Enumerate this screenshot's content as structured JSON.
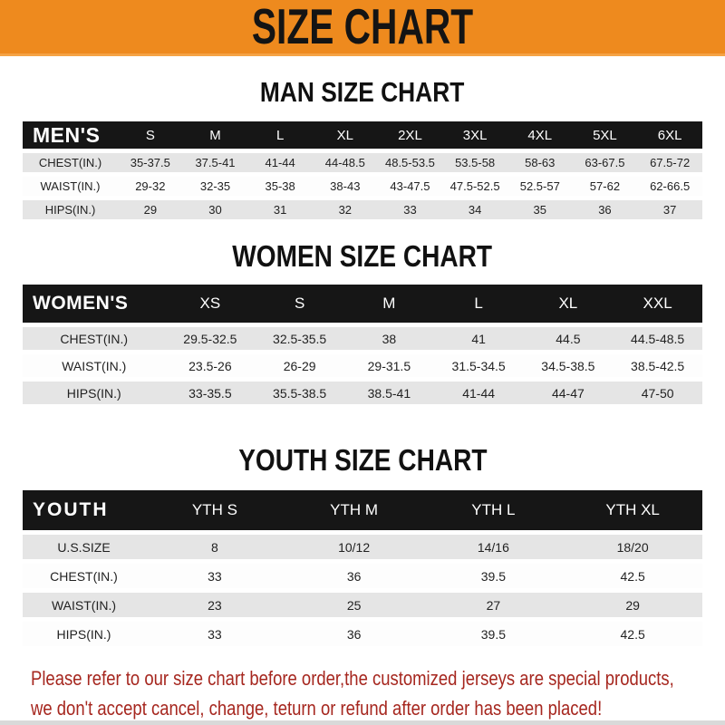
{
  "banner": {
    "title": "SIZE CHART",
    "bg_color": "#ee8a1e",
    "text_color": "#141414"
  },
  "sections": [
    {
      "heading": "MAN SIZE CHART",
      "band_label": "MEN'S",
      "columns": [
        "S",
        "M",
        "L",
        "XL",
        "2XL",
        "3XL",
        "4XL",
        "5XL",
        "6XL"
      ],
      "rows": [
        {
          "label": "CHEST(IN.)",
          "values": [
            "35-37.5",
            "37.5-41",
            "41-44",
            "44-48.5",
            "48.5-53.5",
            "53.5-58",
            "58-63",
            "63-67.5",
            "67.5-72"
          ]
        },
        {
          "label": "WAIST(IN.)",
          "values": [
            "29-32",
            "32-35",
            "35-38",
            "38-43",
            "43-47.5",
            "47.5-52.5",
            "52.5-57",
            "57-62",
            "62-66.5"
          ]
        },
        {
          "label": "HIPS(IN.)",
          "values": [
            "29",
            "30",
            "31",
            "32",
            "33",
            "34",
            "35",
            "36",
            "37"
          ]
        }
      ]
    },
    {
      "heading": "WOMEN SIZE CHART",
      "band_label": "WOMEN'S",
      "columns": [
        "XS",
        "S",
        "M",
        "L",
        "XL",
        "XXL"
      ],
      "rows": [
        {
          "label": "CHEST(IN.)",
          "values": [
            "29.5-32.5",
            "32.5-35.5",
            "38",
            "41",
            "44.5",
            "44.5-48.5"
          ]
        },
        {
          "label": "WAIST(IN.)",
          "values": [
            "23.5-26",
            "26-29",
            "29-31.5",
            "31.5-34.5",
            "34.5-38.5",
            "38.5-42.5"
          ]
        },
        {
          "label": "HIPS(IN.)",
          "values": [
            "33-35.5",
            "35.5-38.5",
            "38.5-41",
            "41-44",
            "44-47",
            "47-50"
          ]
        }
      ]
    },
    {
      "heading": "YOUTH SIZE CHART",
      "band_label": "YOUTH",
      "columns": [
        "YTH S",
        "YTH M",
        "YTH L",
        "YTH XL"
      ],
      "rows": [
        {
          "label": "U.S.SIZE",
          "values": [
            "8",
            "10/12",
            "14/16",
            "18/20"
          ]
        },
        {
          "label": "CHEST(IN.)",
          "values": [
            "33",
            "36",
            "39.5",
            "42.5"
          ]
        },
        {
          "label": "WAIST(IN.)",
          "values": [
            "23",
            "25",
            "27",
            "29"
          ]
        },
        {
          "label": "HIPS(IN.)",
          "values": [
            "33",
            "36",
            "39.5",
            "42.5"
          ]
        }
      ]
    }
  ],
  "footer": {
    "line1": "Please refer to our size chart before order,the customized jerseys are special products,",
    "line2": "we don't accept cancel, change, teturn or refund after order has been placed!",
    "text_color": "#a6271f"
  },
  "colors": {
    "band_bg": "#161616",
    "row_gray": "#e5e5e5",
    "row_white": "#fdfdfd",
    "banner_edge": "#f5a345"
  }
}
